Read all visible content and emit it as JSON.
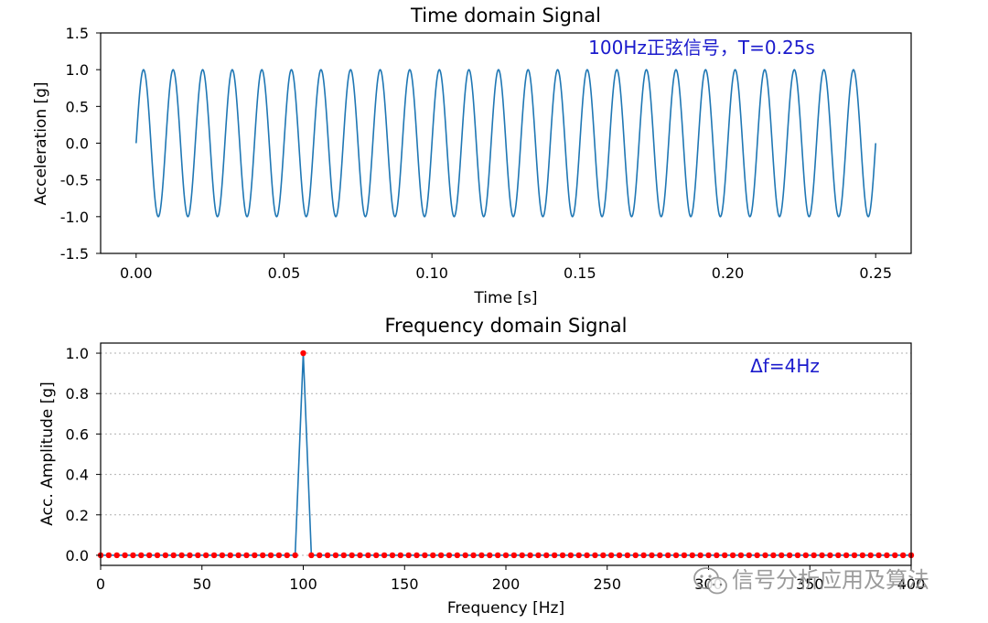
{
  "colors": {
    "line": "#1f77b4",
    "marker": "#ff0000",
    "annotation": "#1a1acc",
    "grid": "#b0b0b0",
    "watermark": "#8a8a8a"
  },
  "watermark": {
    "icon": "wechat-icon",
    "text": "信号分析应用及算法"
  },
  "chart_data": [
    {
      "type": "line",
      "title": "Time domain Signal",
      "xlabel": "Time [s]",
      "ylabel": "Acceleration [g]",
      "xlim": [
        -0.012,
        0.262
      ],
      "ylim": [
        -1.5,
        1.5
      ],
      "xticks": [
        "0.00",
        "0.05",
        "0.10",
        "0.15",
        "0.20",
        "0.25"
      ],
      "yticks": [
        "-1.5",
        "-1.0",
        "-0.5",
        "0.0",
        "0.5",
        "1.0",
        "1.5"
      ],
      "grid": false,
      "annotation": "100Hz正弦信号，T=0.25s",
      "series": [
        {
          "function": "sin",
          "frequency_hz": 100,
          "amplitude": 1.0,
          "t_start": 0,
          "t_end": 0.25
        }
      ]
    },
    {
      "type": "line",
      "title": "Frequency domain Signal",
      "xlabel": "Frequency [Hz]",
      "ylabel": "Acc. Amplitude [g]",
      "xlim": [
        0,
        400
      ],
      "ylim": [
        -0.05,
        1.05
      ],
      "xticks": [
        "0",
        "50",
        "100",
        "150",
        "200",
        "250",
        "300",
        "350",
        "400"
      ],
      "yticks": [
        "0.0",
        "0.2",
        "0.4",
        "0.6",
        "0.8",
        "1.0"
      ],
      "grid": "horizontal dotted",
      "annotation": "Δf=4Hz",
      "series": [
        {
          "frequency_resolution_hz": 4,
          "x_start": 0,
          "x_end": 400,
          "values": [
            0,
            0,
            0,
            0,
            0,
            0,
            0,
            0,
            0,
            0,
            0,
            0,
            0,
            0,
            0,
            0,
            0,
            0,
            0,
            0,
            0,
            0,
            0,
            0,
            0,
            1.0,
            0,
            0,
            0,
            0,
            0,
            0,
            0,
            0,
            0,
            0,
            0,
            0,
            0,
            0,
            0,
            0,
            0,
            0,
            0,
            0,
            0,
            0,
            0,
            0,
            0,
            0,
            0,
            0,
            0,
            0,
            0,
            0,
            0,
            0,
            0,
            0,
            0,
            0,
            0,
            0,
            0,
            0,
            0,
            0,
            0,
            0,
            0,
            0,
            0,
            0,
            0,
            0,
            0,
            0,
            0,
            0,
            0,
            0,
            0,
            0,
            0,
            0,
            0,
            0,
            0,
            0,
            0,
            0,
            0,
            0,
            0,
            0,
            0,
            0,
            0
          ]
        }
      ]
    }
  ]
}
